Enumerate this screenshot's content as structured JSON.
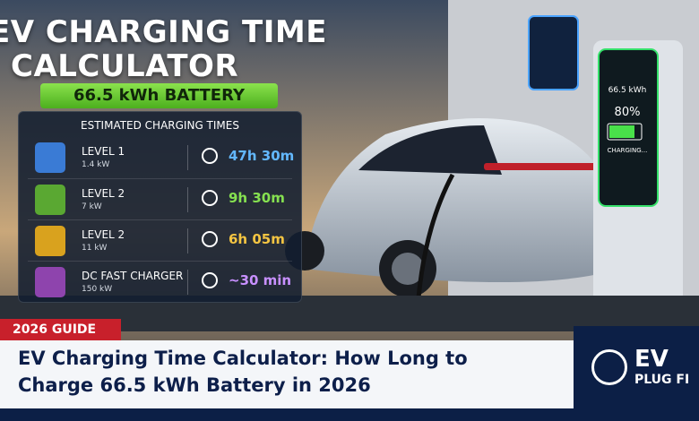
{
  "title": {
    "line1": "EV CHARGING TIME",
    "line2": "CALCULATOR"
  },
  "badge": "66.5 kWh BATTERY",
  "panel": {
    "heading": "ESTIMATED CHARGING TIMES",
    "rows": [
      {
        "level": "LEVEL 1",
        "power": "1.4 kW",
        "time": "47h 30m"
      },
      {
        "level": "LEVEL 2",
        "power": "7 kW",
        "time": "9h 30m"
      },
      {
        "level": "LEVEL 2",
        "power": "11 kW",
        "time": "6h 05m"
      },
      {
        "level": "DC FAST CHARGER",
        "power": "150 kW",
        "time": "~30 min"
      }
    ]
  },
  "charger_screen": {
    "capacity": "66.5 kWh",
    "percent": "80%",
    "status": "CHARGING..."
  },
  "tag": "2026 GUIDE",
  "headline": {
    "line1": "EV Charging Time Calculator: How Long to",
    "line2": "Charge 66.5 kWh Battery in 2026"
  },
  "logo": {
    "line1": "EV",
    "line2": "PLUG FI"
  }
}
